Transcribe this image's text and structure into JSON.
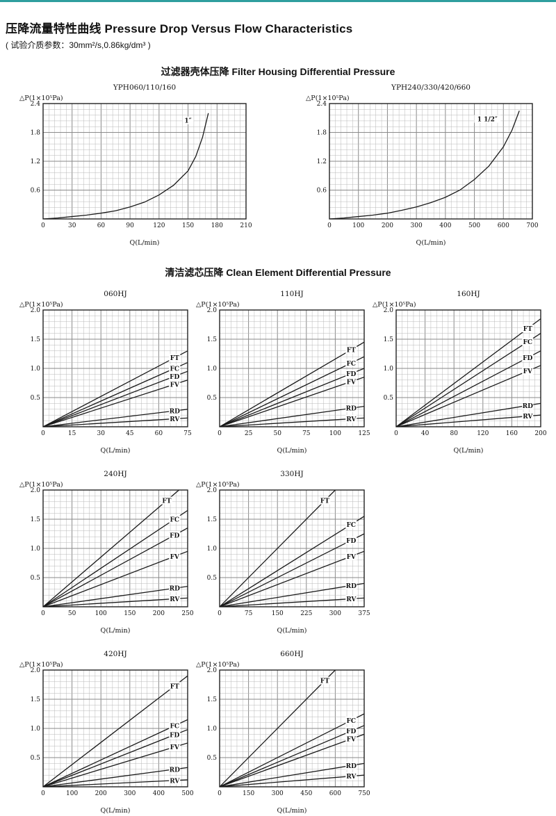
{
  "header": {
    "title_zh": "压降流量特性曲线",
    "title_en": "Pressure Drop Versus Flow Characteristics",
    "subtitle": "( 试验介质参数：30mm²/s,0.86kg/dm³ )"
  },
  "sections": {
    "housing": {
      "heading": "过滤器壳体压降 Filter Housing Differential Pressure"
    },
    "element": {
      "heading": "清洁滤芯压降 Clean Element Differential Pressure"
    }
  },
  "colors": {
    "accent_strip": "#2f9e9e",
    "curve": "#1a1a1a",
    "grid_minor": "#b8b8b8",
    "grid_major": "#8a8a8a",
    "frame": "#222222",
    "text": "#111111"
  },
  "chart_data": [
    {
      "group": "housing",
      "type": "line",
      "title": "YPH060/110/160",
      "xlabel": "Q(L/min)",
      "ylabel": "△P(1×10⁵Pa)",
      "xlim": [
        0,
        210
      ],
      "xticks": [
        0,
        30,
        60,
        90,
        120,
        150,
        180,
        210
      ],
      "ylim": [
        0,
        2.4
      ],
      "yticks": [
        0.6,
        1.2,
        1.8,
        2.4
      ],
      "grid": true,
      "series": [
        {
          "name": "1″",
          "x": [
            0,
            15,
            30,
            45,
            60,
            75,
            90,
            105,
            120,
            135,
            150,
            158,
            165,
            171
          ],
          "y": [
            0,
            0.02,
            0.05,
            0.08,
            0.12,
            0.17,
            0.25,
            0.35,
            0.5,
            0.7,
            1.0,
            1.3,
            1.7,
            2.2
          ],
          "label": [
            150,
            2.05
          ]
        }
      ]
    },
    {
      "group": "housing",
      "type": "line",
      "title": "YPH240/330/420/660",
      "xlabel": "Q(L/min)",
      "ylabel": "△P(1×10⁵Pa)",
      "xlim": [
        0,
        700
      ],
      "xticks": [
        0,
        100,
        200,
        300,
        400,
        500,
        600,
        700
      ],
      "ylim": [
        0,
        2.4
      ],
      "yticks": [
        0.6,
        1.2,
        1.8,
        2.4
      ],
      "grid": true,
      "series": [
        {
          "name": "1 1/2″",
          "x": [
            0,
            50,
            100,
            150,
            200,
            250,
            300,
            350,
            400,
            450,
            500,
            550,
            600,
            630,
            655
          ],
          "y": [
            0,
            0.02,
            0.05,
            0.08,
            0.12,
            0.18,
            0.25,
            0.34,
            0.45,
            0.6,
            0.82,
            1.1,
            1.5,
            1.85,
            2.25
          ],
          "label": [
            545,
            2.08
          ]
        }
      ]
    },
    {
      "group": "element",
      "type": "line",
      "title": "060HJ",
      "xlabel": "Q(L/min)",
      "ylabel": "△P(1×10⁵Pa)",
      "xlim": [
        0,
        75
      ],
      "xticks": [
        0,
        15,
        30,
        45,
        60,
        75
      ],
      "ylim": [
        0,
        2.0
      ],
      "yticks": [
        0.5,
        1.0,
        1.5,
        2.0
      ],
      "grid": true,
      "series": [
        {
          "name": "FT",
          "x": [
            0,
            75
          ],
          "y": [
            0,
            1.3
          ]
        },
        {
          "name": "FC",
          "x": [
            0,
            75
          ],
          "y": [
            0,
            1.1
          ]
        },
        {
          "name": "FD",
          "x": [
            0,
            75
          ],
          "y": [
            0,
            0.95
          ]
        },
        {
          "name": "FV",
          "x": [
            0,
            75
          ],
          "y": [
            0,
            0.8
          ]
        },
        {
          "name": "RD",
          "x": [
            0,
            75
          ],
          "y": [
            0,
            0.3
          ]
        },
        {
          "name": "RV",
          "x": [
            0,
            75
          ],
          "y": [
            0,
            0.15
          ]
        }
      ]
    },
    {
      "group": "element",
      "type": "line",
      "title": "110HJ",
      "xlabel": "Q(L/min)",
      "ylabel": "△P(1×10⁵Pa)",
      "xlim": [
        0,
        125
      ],
      "xticks": [
        0,
        25,
        50,
        75,
        100,
        125
      ],
      "ylim": [
        0,
        2.0
      ],
      "yticks": [
        0.5,
        1.0,
        1.5,
        2.0
      ],
      "grid": true,
      "series": [
        {
          "name": "FT",
          "x": [
            0,
            125
          ],
          "y": [
            0,
            1.45
          ]
        },
        {
          "name": "FC",
          "x": [
            0,
            125
          ],
          "y": [
            0,
            1.2
          ]
        },
        {
          "name": "FD",
          "x": [
            0,
            125
          ],
          "y": [
            0,
            1.0
          ]
        },
        {
          "name": "FV",
          "x": [
            0,
            125
          ],
          "y": [
            0,
            0.85
          ]
        },
        {
          "name": "RD",
          "x": [
            0,
            125
          ],
          "y": [
            0,
            0.35
          ]
        },
        {
          "name": "RV",
          "x": [
            0,
            125
          ],
          "y": [
            0,
            0.15
          ]
        }
      ]
    },
    {
      "group": "element",
      "type": "line",
      "title": "160HJ",
      "xlabel": "Q(L/min)",
      "ylabel": "△P(1×10⁵Pa)",
      "xlim": [
        0,
        200
      ],
      "xticks": [
        0,
        40,
        80,
        120,
        160,
        200
      ],
      "ylim": [
        0,
        2.0
      ],
      "yticks": [
        0.5,
        1.0,
        1.5,
        2.0
      ],
      "grid": true,
      "series": [
        {
          "name": "FT",
          "x": [
            0,
            200
          ],
          "y": [
            0,
            1.85
          ]
        },
        {
          "name": "FC",
          "x": [
            0,
            200
          ],
          "y": [
            0,
            1.6
          ]
        },
        {
          "name": "FD",
          "x": [
            0,
            200
          ],
          "y": [
            0,
            1.3
          ]
        },
        {
          "name": "FV",
          "x": [
            0,
            200
          ],
          "y": [
            0,
            1.05
          ]
        },
        {
          "name": "RD",
          "x": [
            0,
            200
          ],
          "y": [
            0,
            0.4
          ]
        },
        {
          "name": "RV",
          "x": [
            0,
            200
          ],
          "y": [
            0,
            0.2
          ]
        }
      ]
    },
    {
      "group": "element",
      "type": "line",
      "title": "240HJ",
      "xlabel": "Q(L/min)",
      "ylabel": "△P(1×10⁵Pa)",
      "xlim": [
        0,
        250
      ],
      "xticks": [
        0,
        50,
        100,
        150,
        200,
        250
      ],
      "ylim": [
        0,
        2.0
      ],
      "yticks": [
        0.5,
        1.0,
        1.5,
        2.0
      ],
      "grid": true,
      "series": [
        {
          "name": "FT",
          "x": [
            0,
            235
          ],
          "y": [
            0,
            2.0
          ]
        },
        {
          "name": "FC",
          "x": [
            0,
            250
          ],
          "y": [
            0,
            1.65
          ]
        },
        {
          "name": "FD",
          "x": [
            0,
            250
          ],
          "y": [
            0,
            1.35
          ]
        },
        {
          "name": "FV",
          "x": [
            0,
            250
          ],
          "y": [
            0,
            0.95
          ]
        },
        {
          "name": "RD",
          "x": [
            0,
            250
          ],
          "y": [
            0,
            0.35
          ]
        },
        {
          "name": "RV",
          "x": [
            0,
            250
          ],
          "y": [
            0,
            0.15
          ]
        }
      ]
    },
    {
      "group": "element",
      "type": "line",
      "title": "330HJ",
      "xlabel": "Q(L/min)",
      "ylabel": "△P(1×10⁵Pa)",
      "xlim": [
        0,
        375
      ],
      "xticks": [
        0,
        75,
        150,
        225,
        300,
        375
      ],
      "ylim": [
        0,
        2.0
      ],
      "yticks": [
        0.5,
        1.0,
        1.5,
        2.0
      ],
      "grid": true,
      "series": [
        {
          "name": "FT",
          "x": [
            0,
            300
          ],
          "y": [
            0,
            2.0
          ]
        },
        {
          "name": "FC",
          "x": [
            0,
            375
          ],
          "y": [
            0,
            1.55
          ]
        },
        {
          "name": "FD",
          "x": [
            0,
            375
          ],
          "y": [
            0,
            1.25
          ]
        },
        {
          "name": "FV",
          "x": [
            0,
            375
          ],
          "y": [
            0,
            0.95
          ]
        },
        {
          "name": "RD",
          "x": [
            0,
            375
          ],
          "y": [
            0,
            0.4
          ]
        },
        {
          "name": "RV",
          "x": [
            0,
            375
          ],
          "y": [
            0,
            0.15
          ]
        }
      ]
    },
    {
      "group": "element",
      "type": "line",
      "title": "420HJ",
      "xlabel": "Q(L/min)",
      "ylabel": "△P(1×10⁵Pa)",
      "xlim": [
        0,
        500
      ],
      "xticks": [
        0,
        100,
        200,
        300,
        400,
        500
      ],
      "ylim": [
        0,
        2.0
      ],
      "yticks": [
        0.5,
        1.0,
        1.5,
        2.0
      ],
      "grid": true,
      "series": [
        {
          "name": "FT",
          "x": [
            0,
            500
          ],
          "y": [
            0,
            1.9
          ]
        },
        {
          "name": "FC",
          "x": [
            0,
            500
          ],
          "y": [
            0,
            1.15
          ]
        },
        {
          "name": "FD",
          "x": [
            0,
            500
          ],
          "y": [
            0,
            0.98
          ]
        },
        {
          "name": "FV",
          "x": [
            0,
            500
          ],
          "y": [
            0,
            0.75
          ]
        },
        {
          "name": "RD",
          "x": [
            0,
            500
          ],
          "y": [
            0,
            0.33
          ]
        },
        {
          "name": "RV",
          "x": [
            0,
            500
          ],
          "y": [
            0,
            0.12
          ]
        }
      ]
    },
    {
      "group": "element",
      "type": "line",
      "title": "660HJ",
      "xlabel": "Q(L/min)",
      "ylabel": "△P(1×10⁵Pa)",
      "xlim": [
        0,
        750
      ],
      "xticks": [
        0,
        150,
        300,
        450,
        600,
        750
      ],
      "ylim": [
        0,
        2.0
      ],
      "yticks": [
        0.5,
        1.0,
        1.5,
        2.0
      ],
      "grid": true,
      "series": [
        {
          "name": "FT",
          "x": [
            0,
            600
          ],
          "y": [
            0,
            2.0
          ]
        },
        {
          "name": "FC",
          "x": [
            0,
            750
          ],
          "y": [
            0,
            1.25
          ]
        },
        {
          "name": "FD",
          "x": [
            0,
            750
          ],
          "y": [
            0,
            1.05
          ]
        },
        {
          "name": "FV",
          "x": [
            0,
            750
          ],
          "y": [
            0,
            0.9
          ]
        },
        {
          "name": "RD",
          "x": [
            0,
            750
          ],
          "y": [
            0,
            0.4
          ]
        },
        {
          "name": "RV",
          "x": [
            0,
            750
          ],
          "y": [
            0,
            0.2
          ]
        }
      ]
    }
  ]
}
